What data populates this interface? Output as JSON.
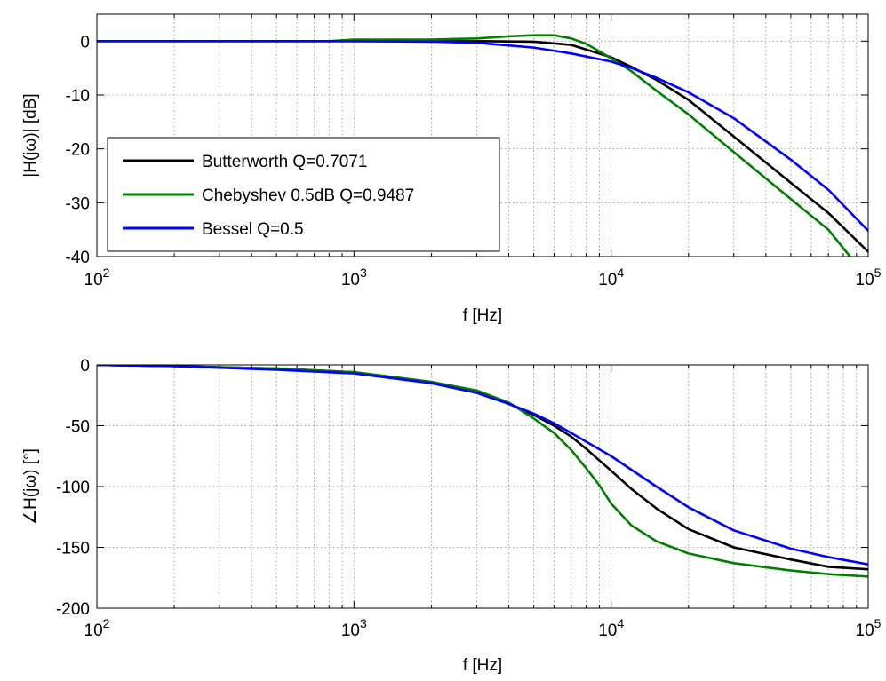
{
  "chart_data": [
    {
      "type": "line",
      "xscale": "log",
      "xlim": [
        100,
        100000
      ],
      "ylim": [
        -40,
        5
      ],
      "xlabel": "f [Hz]",
      "ylabel": "|H(jω)| [dB]",
      "xticks": [
        {
          "base": "10",
          "exp": "2"
        },
        {
          "base": "10",
          "exp": "3"
        },
        {
          "base": "10",
          "exp": "4"
        },
        {
          "base": "10",
          "exp": "5"
        }
      ],
      "yticks": [
        0,
        -10,
        -20,
        -30,
        -40
      ],
      "ytick_labels": [
        "0",
        "-10",
        "-20",
        "-30",
        "-40"
      ],
      "grid": true,
      "legend": {
        "placement": "left",
        "entries": [
          "Butterworth Q=0.7071",
          "Chebyshev 0.5dB Q=0.9487",
          "Bessel Q=0.5"
        ]
      },
      "series": [
        {
          "name": "Butterworth Q=0.7071",
          "color": "#000000",
          "x": [
            100,
            1000,
            3000,
            5000,
            7000,
            10000,
            12000,
            15000,
            20000,
            30000,
            50000,
            70000,
            100000
          ],
          "y": [
            0,
            0,
            0,
            -0.1,
            -0.7,
            -3,
            -4.8,
            -7.2,
            -10.9,
            -17.7,
            -26.3,
            -31.9,
            -39.1
          ]
        },
        {
          "name": "Chebyshev 0.5dB Q=0.9487",
          "color": "#007f00",
          "x": [
            100,
            800,
            1000,
            2000,
            3000,
            4000,
            5000,
            6000,
            7000,
            8000,
            9000,
            10000,
            12000,
            15000,
            20000,
            30000,
            50000,
            70000,
            85000
          ],
          "y": [
            0,
            0,
            0.3,
            0.3,
            0.5,
            0.9,
            1.1,
            1.1,
            0.5,
            -0.5,
            -1.9,
            -3.2,
            -5.6,
            -9.2,
            -13.6,
            -20.6,
            -29.3,
            -35,
            -40
          ]
        },
        {
          "name": "Bessel Q=0.5",
          "color": "#0000ff",
          "x": [
            100,
            1000,
            2000,
            3000,
            4000,
            5000,
            7000,
            10000,
            12000,
            15000,
            20000,
            30000,
            50000,
            70000,
            100000
          ],
          "y": [
            0,
            0,
            -0.1,
            -0.3,
            -0.8,
            -1.2,
            -2.3,
            -3.8,
            -5,
            -6.8,
            -9.5,
            -14.3,
            -22,
            -27.6,
            -35.2
          ]
        }
      ]
    },
    {
      "type": "line",
      "xscale": "log",
      "xlim": [
        100,
        100000
      ],
      "ylim": [
        -200,
        0
      ],
      "xlabel": "f [Hz]",
      "ylabel_symbol": "∠",
      "ylabel": "H(jω) [°]",
      "xticks": [
        {
          "base": "10",
          "exp": "2"
        },
        {
          "base": "10",
          "exp": "3"
        },
        {
          "base": "10",
          "exp": "4"
        },
        {
          "base": "10",
          "exp": "5"
        }
      ],
      "yticks": [
        0,
        -50,
        -100,
        -150,
        -200
      ],
      "ytick_labels": [
        "0",
        "-50",
        "-100",
        "-150",
        "-200"
      ],
      "grid": true,
      "series": [
        {
          "name": "Butterworth Q=0.7071",
          "color": "#000000",
          "x": [
            100,
            200,
            500,
            1000,
            2000,
            3000,
            4000,
            5000,
            6000,
            7000,
            8000,
            10000,
            12000,
            15000,
            20000,
            30000,
            50000,
            70000,
            100000
          ],
          "y": [
            0,
            -1,
            -3,
            -6,
            -14,
            -22,
            -32,
            -41,
            -50,
            -59,
            -69,
            -87,
            -102,
            -118,
            -135,
            -150,
            -160,
            -166,
            -168
          ]
        },
        {
          "name": "Chebyshev 0.5dB Q=0.9487",
          "color": "#007f00",
          "x": [
            100,
            200,
            500,
            1000,
            2000,
            3000,
            4000,
            5000,
            6000,
            7000,
            8000,
            9000,
            10000,
            12000,
            15000,
            20000,
            30000,
            50000,
            70000,
            100000
          ],
          "y": [
            0,
            -1,
            -3,
            -6,
            -14,
            -21,
            -31,
            -44,
            -56,
            -70,
            -85,
            -99,
            -114,
            -132,
            -145,
            -155,
            -163,
            -169,
            -172,
            -174
          ]
        },
        {
          "name": "Bessel Q=0.5",
          "color": "#0000ff",
          "x": [
            100,
            200,
            500,
            1000,
            2000,
            3000,
            4000,
            5000,
            6000,
            7000,
            10000,
            15000,
            20000,
            30000,
            50000,
            70000,
            100000
          ],
          "y": [
            0,
            -1,
            -4,
            -7,
            -15,
            -23,
            -32,
            -40,
            -48,
            -56,
            -75,
            -100,
            -117,
            -136,
            -151,
            -158,
            -164
          ]
        }
      ]
    }
  ]
}
